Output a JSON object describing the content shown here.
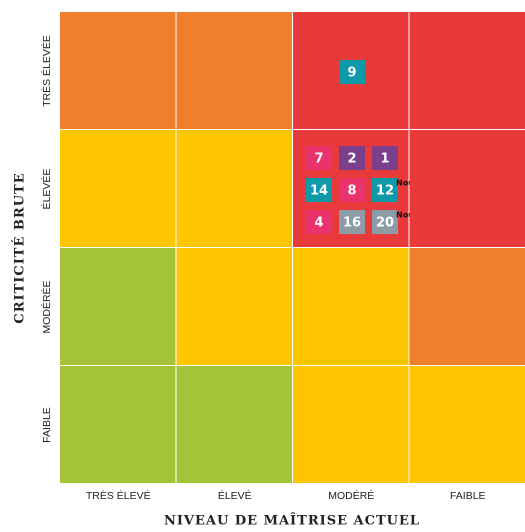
{
  "y_axis": {
    "title": "CRITICITÉ BRUTE",
    "labels": [
      "TRÈS ÉLEVÉE",
      "ÉLEVÉE",
      "MODÉRÉE",
      "FAIBLE"
    ]
  },
  "x_axis": {
    "title": "NIVEAU DE MAÎTRISE ACTUEL",
    "labels": [
      "TRÈS ÉLEVÉ",
      "ÉLEVÉ",
      "MODÉRÉ",
      "FAIBLE"
    ]
  },
  "rows": [
    {
      "cells": [
        {
          "color": "#ef7f2a"
        },
        {
          "color": "#ef7f2a"
        },
        {
          "color": "#e8393b",
          "badges": [
            {
              "label": "9",
              "color": "#0e9aa8"
            }
          ]
        },
        {
          "color": "#e8393b"
        }
      ]
    },
    {
      "cells": [
        {
          "color": "#fdc600"
        },
        {
          "color": "#fdc600"
        },
        {
          "color": "#e8393b",
          "badges": [
            {
              "label": "7",
              "color": "#e8336d"
            },
            {
              "label": "2",
              "color": "#7c3f8d"
            },
            {
              "label": "1",
              "color": "#7c3f8d"
            },
            {
              "label": "14",
              "color": "#0e9aa8"
            },
            {
              "label": "8",
              "color": "#e8336d"
            },
            {
              "label": "12",
              "color": "#0e9aa8",
              "tag": "Nouveau"
            },
            {
              "label": "4",
              "color": "#e8336d"
            },
            {
              "label": "16",
              "color": "#8b9ba7"
            },
            {
              "label": "20",
              "color": "#8b9ba7",
              "tag": "Nouveau"
            }
          ]
        },
        {
          "color": "#e8393b"
        }
      ]
    },
    {
      "cells": [
        {
          "color": "#a4c339"
        },
        {
          "color": "#fdc600"
        },
        {
          "color": "#fdc600"
        },
        {
          "color": "#ef7f2a"
        }
      ]
    },
    {
      "cells": [
        {
          "color": "#a4c339"
        },
        {
          "color": "#a4c339"
        },
        {
          "color": "#fdc600"
        },
        {
          "color": "#fdc600"
        }
      ]
    }
  ]
}
